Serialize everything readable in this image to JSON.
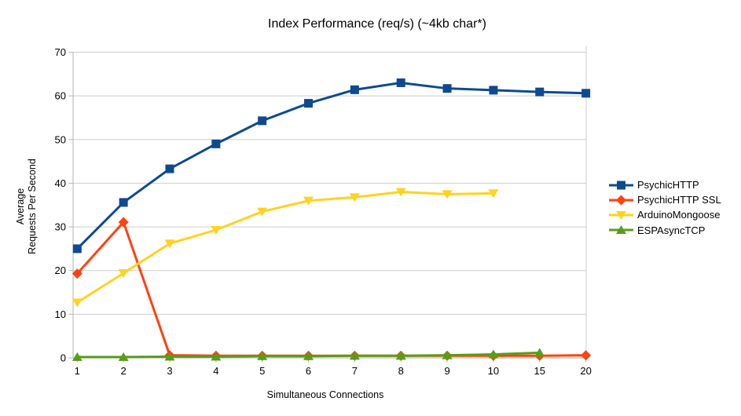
{
  "colors": {
    "background": "#ffffff",
    "grid": "#cdcdcd",
    "axis": "#b3b3b3",
    "text": "#000000"
  },
  "chart_data": {
    "type": "line",
    "title": "Index Performance (req/s) (~4kb char*)",
    "xlabel": "Simultaneous Connections",
    "ylabel_lines": [
      "Average",
      "Requests Per Second"
    ],
    "categories": [
      "1",
      "2",
      "3",
      "4",
      "5",
      "6",
      "7",
      "8",
      "9",
      "10",
      "15",
      "20"
    ],
    "y_ticks": [
      0,
      10,
      20,
      30,
      40,
      50,
      60,
      70
    ],
    "ylim": [
      0,
      70
    ],
    "grid": true,
    "legend_position": "right",
    "series": [
      {
        "name": "PsychicHTTP",
        "color": "#0e4a90",
        "marker": "square",
        "values": [
          25.0,
          35.6,
          43.3,
          49.0,
          54.3,
          58.3,
          61.4,
          63.0,
          61.7,
          61.3,
          60.9,
          60.6
        ]
      },
      {
        "name": "PsychicHTTP SSL",
        "color": "#ff420e",
        "marker": "diamond",
        "values": [
          19.3,
          31.1,
          0.6,
          0.5,
          0.5,
          0.5,
          0.5,
          0.5,
          0.5,
          0.5,
          0.5,
          0.6
        ]
      },
      {
        "name": "ArduinoMongoose",
        "color": "#ffd320",
        "marker": "triangle-down",
        "values": [
          12.7,
          19.4,
          26.2,
          29.3,
          33.5,
          36.0,
          36.8,
          38.0,
          37.5,
          37.7,
          null,
          null
        ]
      },
      {
        "name": "ESPAsyncTCP",
        "color": "#579d1c",
        "marker": "triangle-up",
        "values": [
          0.2,
          0.2,
          0.3,
          0.3,
          0.4,
          0.4,
          0.5,
          0.5,
          0.6,
          0.8,
          1.2,
          null
        ]
      }
    ]
  }
}
